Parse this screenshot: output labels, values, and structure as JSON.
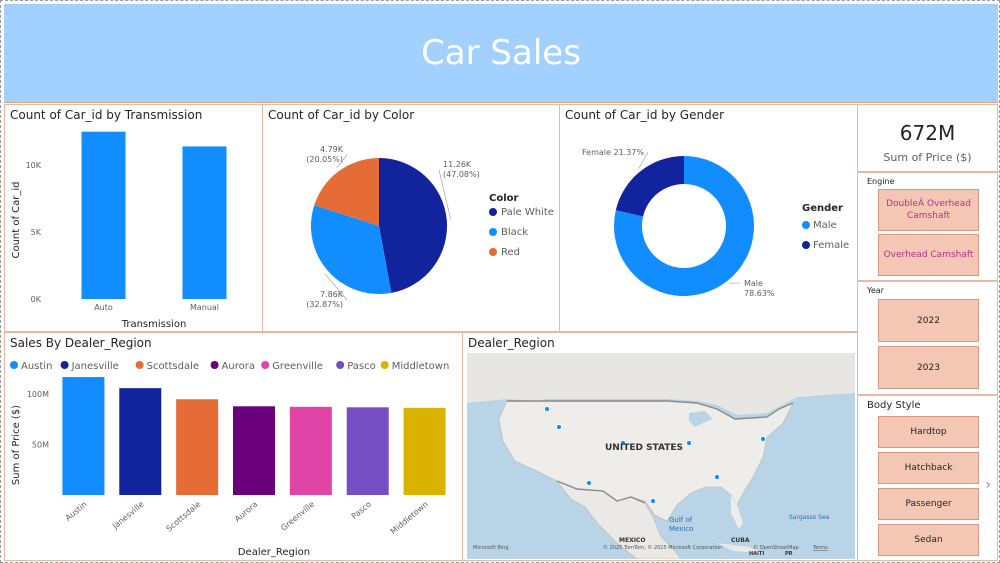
{
  "header": {
    "title": "Car Sales"
  },
  "transmission_chart": {
    "title": "Count of Car_id by Transmission",
    "chart_data": {
      "type": "bar",
      "categories": [
        "Auto",
        "Manual"
      ],
      "values": [
        12500,
        11400
      ],
      "ylim": [
        0,
        13000
      ],
      "yticks": [
        0,
        5000,
        10000
      ],
      "ytick_labels": [
        "0K",
        "5K",
        "10K"
      ],
      "xlabel": "Transmission",
      "ylabel": "Count of Car_id",
      "color": "#118dff"
    }
  },
  "color_chart": {
    "title": "Count of Car_id by Color",
    "legend_title": "Color",
    "chart_data": {
      "type": "pie",
      "slices": [
        {
          "name": "Pale White",
          "value": 11260,
          "label": "11.26K",
          "pct": "(47.08%)",
          "color": "#12239e"
        },
        {
          "name": "Black",
          "value": 7860,
          "label": "7.86K",
          "pct": "(32.87%)",
          "color": "#118dff"
        },
        {
          "name": "Red",
          "value": 4790,
          "label": "4.79K",
          "pct": "(20.05%)",
          "color": "#e66c37"
        }
      ]
    }
  },
  "gender_chart": {
    "title": "Count of Car_id by Gender",
    "legend_title": "Gender",
    "chart_data": {
      "type": "pie",
      "slices": [
        {
          "name": "Male",
          "value": 78.63,
          "label": "Male",
          "pct": "78.63%",
          "color": "#118dff"
        },
        {
          "name": "Female",
          "value": 21.37,
          "label": "Female",
          "pct": "21.37%",
          "color": "#12239e"
        }
      ]
    }
  },
  "kpi": {
    "value": "672M",
    "label": "Sum of Price ($)"
  },
  "engine_slicer": {
    "title": "Engine",
    "options": [
      "DoubleÂ Overhead Camshaft",
      "Overhead Camshaft"
    ]
  },
  "year_slicer": {
    "title": "Year",
    "options": [
      "2022",
      "2023"
    ]
  },
  "body_slicer": {
    "title": "Body Style",
    "options": [
      "Hardtop",
      "Hatchback",
      "Passenger",
      "Sedan"
    ]
  },
  "region_chart": {
    "title": "Sales By Dealer_Region",
    "chart_data": {
      "type": "bar",
      "categories": [
        "Austin",
        "Janesville",
        "Scottsdale",
        "Aurora",
        "Greenville",
        "Pasco",
        "Middletown"
      ],
      "values": [
        117000000,
        106000000,
        95000000,
        88000000,
        87500000,
        87000000,
        86500000
      ],
      "colors": [
        "#118dff",
        "#12239e",
        "#e66c37",
        "#6b007b",
        "#e044a7",
        "#744ec2",
        "#d9b300"
      ],
      "ylim": [
        0,
        125000000
      ],
      "yticks": [
        50000000,
        100000000
      ],
      "ytick_labels": [
        "50M",
        "100M"
      ],
      "xlabel": "Dealer_Region",
      "ylabel": "Sum of Price ($)"
    }
  },
  "map": {
    "title": "Dealer_Region",
    "country_label": "UNITED STATES",
    "mexico_label": "MEXICO",
    "gulf_label": "Gulf of Mexico",
    "cuba_label": "CUBA",
    "haiti_label": "HAITI",
    "pr_label": "PR",
    "sargasso_label": "Sargasso Sea",
    "copyright": "© 2025 TomTom, © 2025 Microsoft Corporation",
    "osm": "© OpenStreetMap",
    "terms": "Terms",
    "bing": "Microsoft Bing"
  },
  "nav": {
    "next_icon": "›"
  }
}
